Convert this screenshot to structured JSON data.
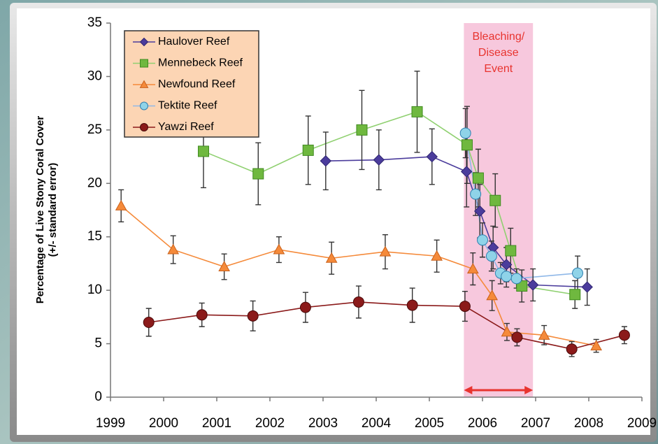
{
  "chart_data": {
    "type": "line",
    "ylabel": [
      "Percentage of Live Stony Coral Cover",
      "(+/- standard error)"
    ],
    "xlim": [
      1999,
      2009
    ],
    "ylim": [
      0,
      35
    ],
    "xticks": [
      1999,
      2000,
      2001,
      2002,
      2003,
      2004,
      2005,
      2006,
      2007,
      2008,
      2009
    ],
    "yticks": [
      0,
      5,
      10,
      15,
      20,
      25,
      30,
      35
    ],
    "grid": false,
    "legend": "upper left",
    "annotation": {
      "text": [
        "Bleaching/",
        "Disease",
        "Event"
      ],
      "xrange": [
        2005.65,
        2006.95
      ],
      "color": "#f4b6d2",
      "text_color": "#e8342f"
    },
    "series": [
      {
        "name": "Haulover Reef",
        "color": "#4b3c9c",
        "marker": "diamond",
        "x": [
          2003.05,
          2004.05,
          2005.05,
          2005.7,
          2005.95,
          2006.2,
          2006.45,
          2006.95,
          2007.97
        ],
        "values": [
          22.1,
          22.2,
          22.5,
          21.1,
          17.4,
          14.0,
          12.4,
          10.5,
          10.3
        ],
        "errors": [
          2.7,
          2.8,
          2.6,
          3.3,
          2.5,
          2.0,
          1.6,
          1.5,
          1.7
        ]
      },
      {
        "name": "Mennebeck Reef",
        "color": "#6fb83f",
        "marker": "square",
        "x": [
          2000.75,
          2001.78,
          2002.72,
          2003.73,
          2004.77,
          2005.71,
          2005.92,
          2006.24,
          2006.53,
          2006.74,
          2007.74
        ],
        "values": [
          23.0,
          20.9,
          23.1,
          25.0,
          26.7,
          23.6,
          20.5,
          18.4,
          13.7,
          10.4,
          9.6
        ],
        "errors": [
          3.4,
          2.9,
          3.2,
          3.7,
          3.8,
          3.6,
          2.7,
          2.5,
          2.1,
          1.5,
          1.3
        ]
      },
      {
        "name": "Newfound Reef",
        "color": "#f58a3a",
        "marker": "triangle",
        "x": [
          1999.2,
          2000.18,
          2001.14,
          2002.17,
          2003.16,
          2004.17,
          2005.14,
          2005.82,
          2006.18,
          2006.46,
          2007.16,
          2008.14
        ],
        "values": [
          17.9,
          13.8,
          12.2,
          13.8,
          13.0,
          13.6,
          13.2,
          12.0,
          9.5,
          6.1,
          5.8,
          4.8
        ],
        "errors": [
          1.5,
          1.3,
          1.2,
          1.2,
          1.5,
          1.6,
          1.5,
          1.5,
          1.4,
          0.8,
          0.9,
          0.6
        ]
      },
      {
        "name": "Tektite Reef",
        "color": "#8fd3e8",
        "marker": "circle",
        "x": [
          2005.68,
          2005.87,
          2006.0,
          2006.17,
          2006.34,
          2006.45,
          2006.64,
          2007.79
        ],
        "values": [
          24.7,
          19.0,
          14.7,
          13.2,
          11.6,
          11.3,
          11.1,
          11.6
        ],
        "errors": [
          2.3,
          2.0,
          1.6,
          1.4,
          1.0,
          1.0,
          0.9,
          1.6
        ]
      },
      {
        "name": "Yawzi Reef",
        "color": "#8b1a1a",
        "marker": "circle",
        "x": [
          1999.72,
          2000.72,
          2001.68,
          2002.67,
          2003.67,
          2004.68,
          2005.67,
          2006.65,
          2007.68,
          2008.67
        ],
        "values": [
          7.0,
          7.7,
          7.6,
          8.4,
          8.9,
          8.6,
          8.5,
          5.6,
          4.5,
          5.8
        ],
        "errors": [
          1.3,
          1.1,
          1.4,
          1.4,
          1.5,
          1.6,
          1.4,
          0.8,
          0.7,
          0.8
        ]
      }
    ]
  }
}
